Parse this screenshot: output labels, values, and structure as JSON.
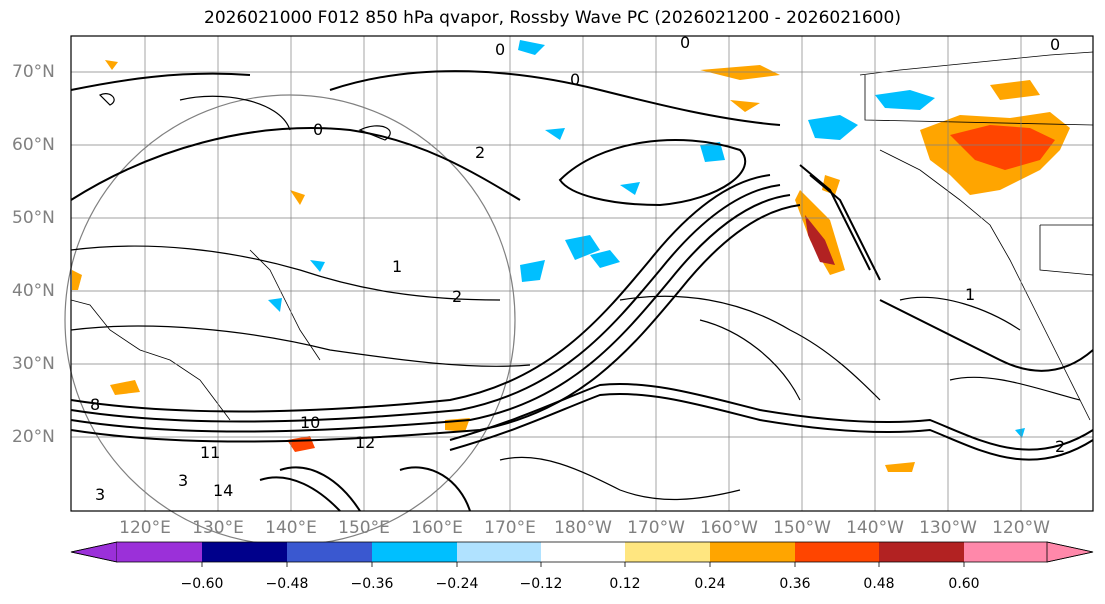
{
  "title": "2026021000 F012 850 hPa qvapor, Rossby Wave PC (2026021200 - 2026021600)",
  "map": {
    "lat_labels": [
      "70°N",
      "60°N",
      "50°N",
      "40°N",
      "30°N",
      "20°N"
    ],
    "lon_labels": [
      "120°E",
      "130°E",
      "140°E",
      "150°E",
      "160°E",
      "170°E",
      "180°W",
      "170°W",
      "160°W",
      "150°W",
      "140°W",
      "130°W",
      "120°W"
    ],
    "contour_labels": [
      "0",
      "0",
      "0",
      "0",
      "0",
      "1",
      "1",
      "2",
      "2",
      "2",
      "8",
      "10",
      "11",
      "12",
      "14",
      "3",
      "3"
    ]
  },
  "colorbar": {
    "tick_labels": [
      "−0.60",
      "−0.48",
      "−0.36",
      "−0.24",
      "−0.12",
      "0.12",
      "0.24",
      "0.36",
      "0.48",
      "0.60"
    ],
    "colors": [
      "#9b30d9",
      "#00008b",
      "#3a58d0",
      "#00bfff",
      "#b0e2ff",
      "#ffffff",
      "#ffe680",
      "#ffa500",
      "#ff4500",
      "#b22222",
      "#ff88aa"
    ]
  }
}
